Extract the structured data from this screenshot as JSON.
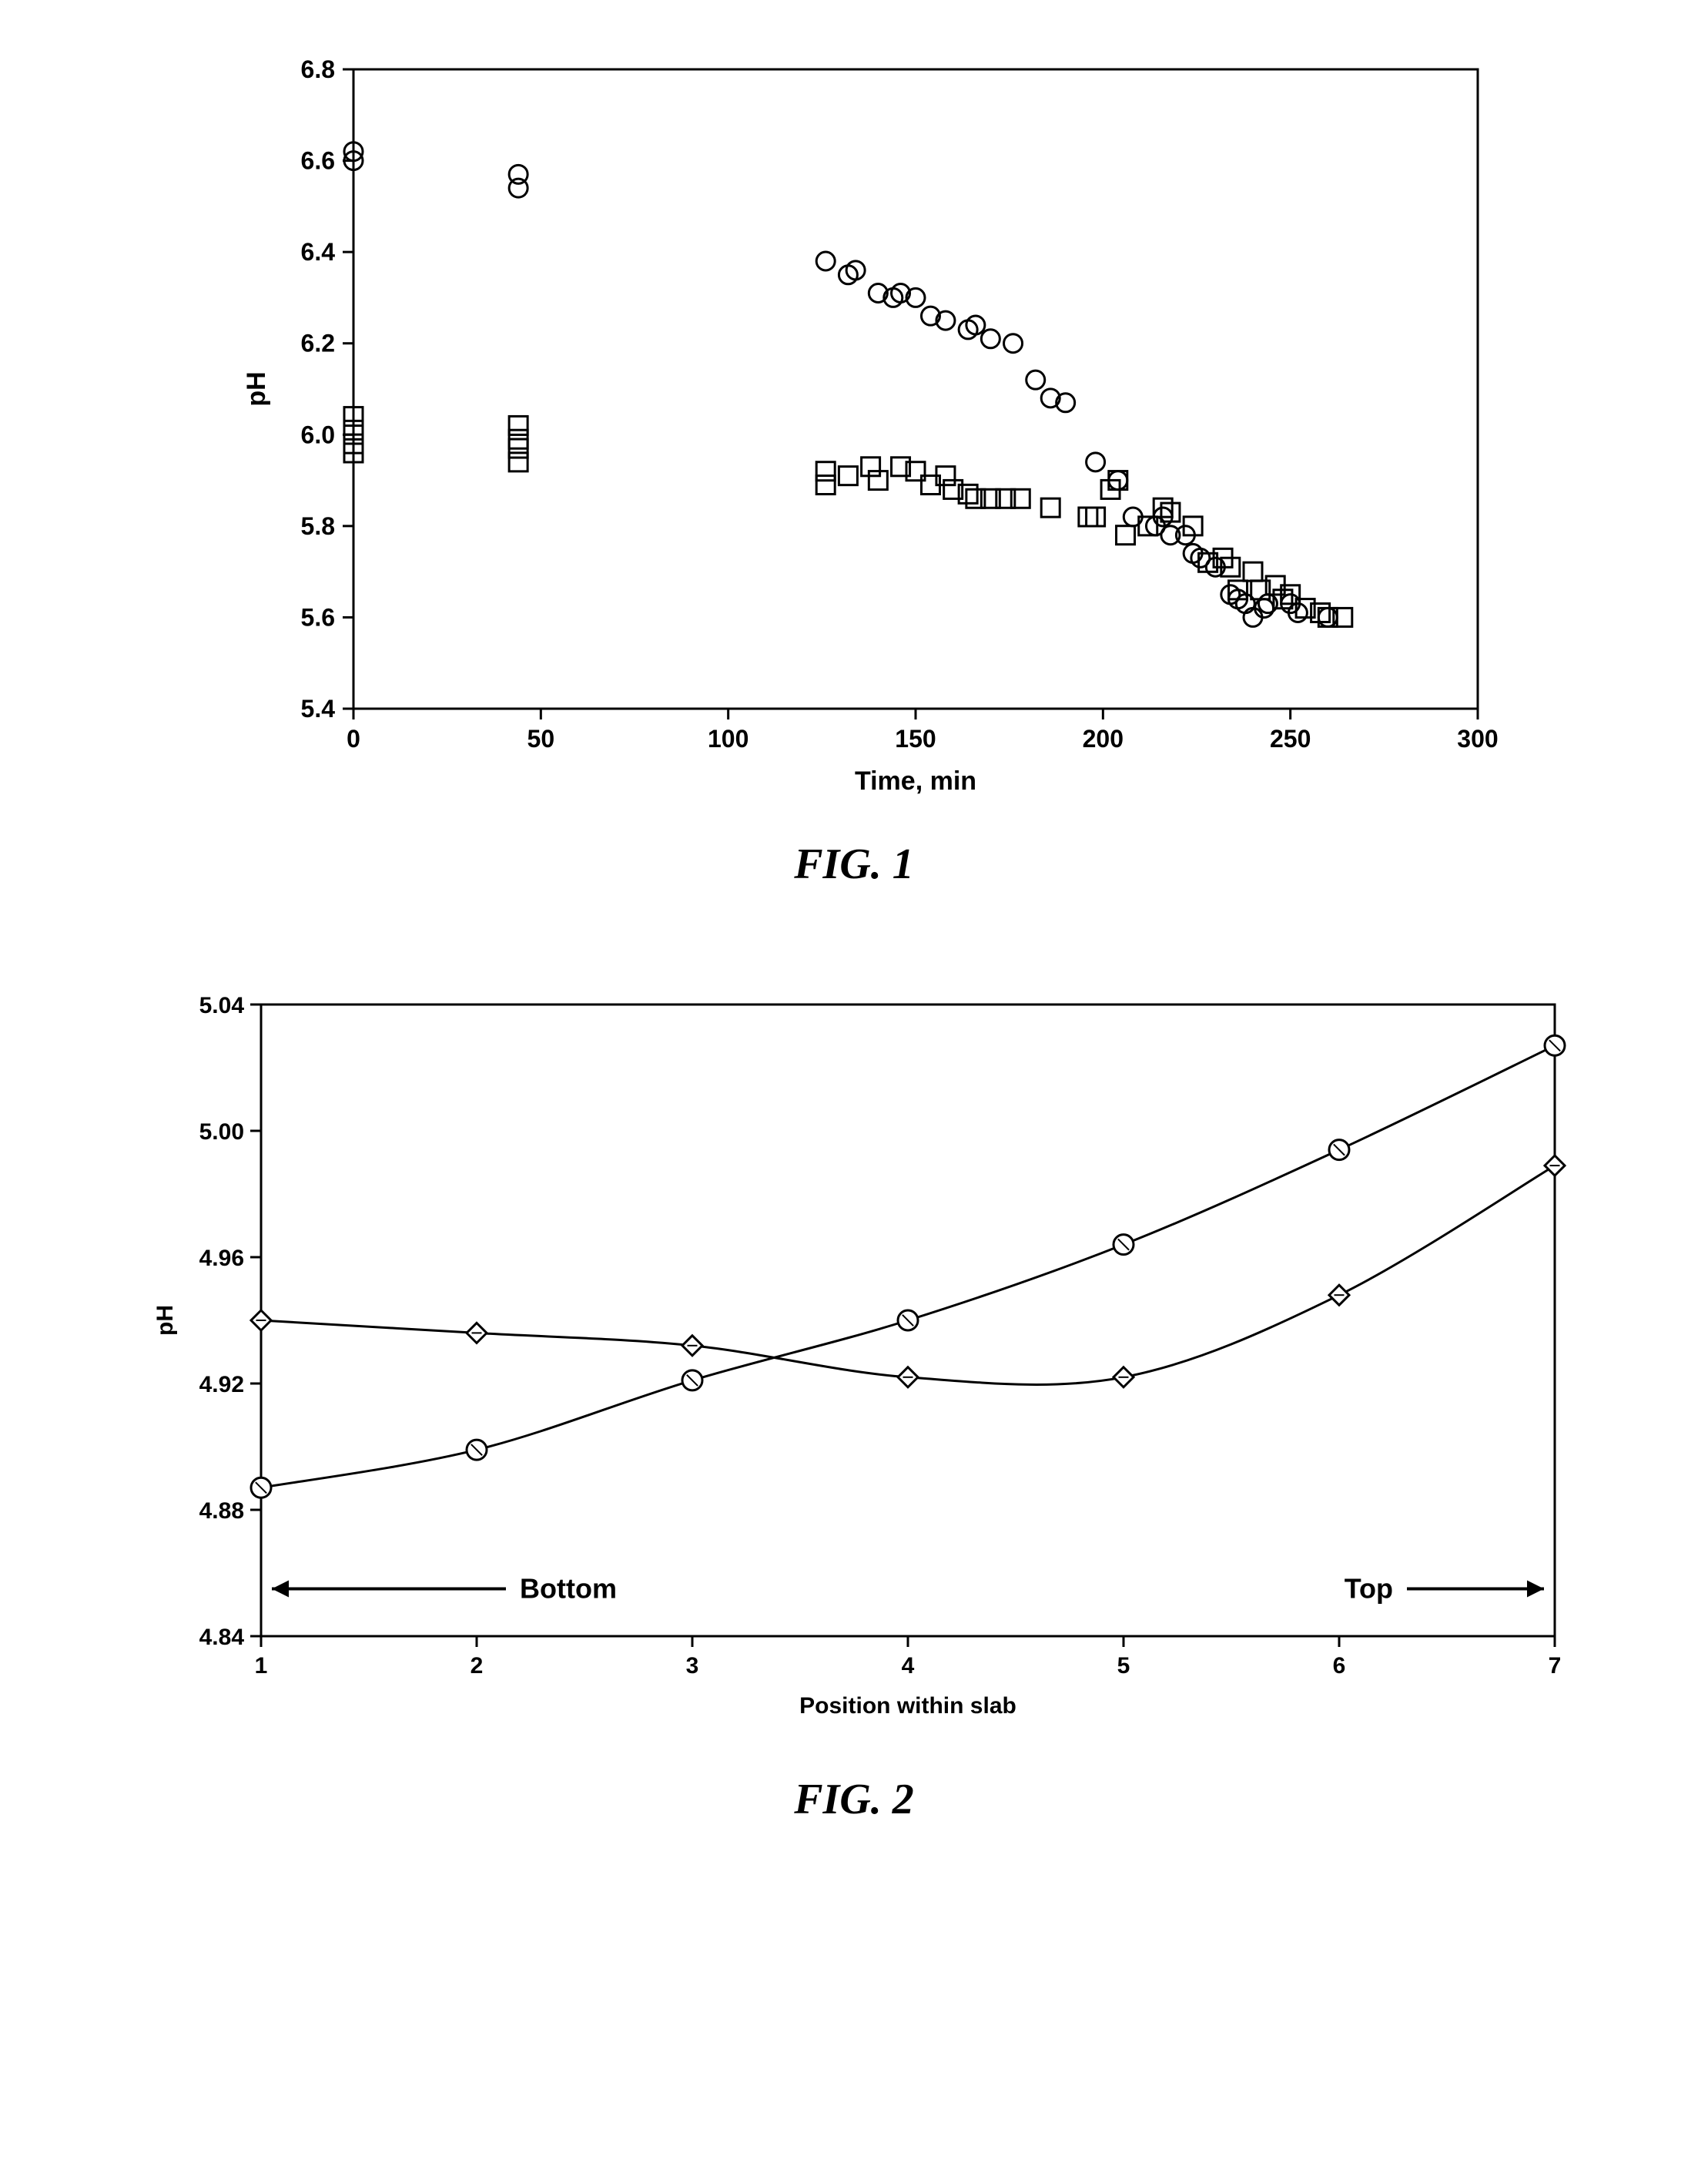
{
  "fig1": {
    "type": "scatter",
    "caption": "FIG. 1",
    "caption_fontsize": 56,
    "xlabel": "Time, min",
    "ylabel": "pH",
    "label_fontsize": 34,
    "tick_fontsize": 32,
    "plot_bg": "#ffffff",
    "axis_color": "#000000",
    "axis_width": 3,
    "marker_stroke": "#000000",
    "marker_stroke_width": 3,
    "marker_fill": "none",
    "marker_size": 12,
    "xlim": [
      0,
      300
    ],
    "ylim": [
      5.4,
      6.8
    ],
    "xtick_step": 50,
    "ytick_step": 0.2,
    "series": [
      {
        "name": "circles",
        "marker": "circle",
        "points": [
          [
            0,
            6.62
          ],
          [
            0,
            6.6
          ],
          [
            44,
            6.57
          ],
          [
            44,
            6.54
          ],
          [
            126,
            6.38
          ],
          [
            132,
            6.35
          ],
          [
            134,
            6.36
          ],
          [
            140,
            6.31
          ],
          [
            144,
            6.3
          ],
          [
            146,
            6.31
          ],
          [
            150,
            6.3
          ],
          [
            154,
            6.26
          ],
          [
            158,
            6.25
          ],
          [
            164,
            6.23
          ],
          [
            166,
            6.24
          ],
          [
            170,
            6.21
          ],
          [
            176,
            6.2
          ],
          [
            182,
            6.12
          ],
          [
            186,
            6.08
          ],
          [
            190,
            6.07
          ],
          [
            198,
            5.94
          ],
          [
            204,
            5.9
          ],
          [
            208,
            5.82
          ],
          [
            214,
            5.8
          ],
          [
            216,
            5.82
          ],
          [
            218,
            5.78
          ],
          [
            222,
            5.78
          ],
          [
            224,
            5.74
          ],
          [
            226,
            5.73
          ],
          [
            230,
            5.71
          ],
          [
            234,
            5.65
          ],
          [
            236,
            5.64
          ],
          [
            238,
            5.63
          ],
          [
            240,
            5.6
          ],
          [
            243,
            5.62
          ],
          [
            244,
            5.63
          ],
          [
            250,
            5.63
          ],
          [
            252,
            5.61
          ],
          [
            260,
            5.6
          ]
        ]
      },
      {
        "name": "squares",
        "marker": "square",
        "points": [
          [
            0,
            6.04
          ],
          [
            0,
            6.01
          ],
          [
            0,
            5.98
          ],
          [
            0,
            5.96
          ],
          [
            44,
            6.02
          ],
          [
            44,
            5.99
          ],
          [
            44,
            5.97
          ],
          [
            44,
            5.94
          ],
          [
            126,
            5.92
          ],
          [
            126,
            5.89
          ],
          [
            132,
            5.91
          ],
          [
            138,
            5.93
          ],
          [
            140,
            5.9
          ],
          [
            146,
            5.93
          ],
          [
            150,
            5.92
          ],
          [
            154,
            5.89
          ],
          [
            158,
            5.91
          ],
          [
            160,
            5.88
          ],
          [
            164,
            5.87
          ],
          [
            166,
            5.86
          ],
          [
            170,
            5.86
          ],
          [
            174,
            5.86
          ],
          [
            178,
            5.86
          ],
          [
            186,
            5.84
          ],
          [
            196,
            5.82
          ],
          [
            198,
            5.82
          ],
          [
            202,
            5.88
          ],
          [
            204,
            5.9
          ],
          [
            206,
            5.78
          ],
          [
            212,
            5.8
          ],
          [
            216,
            5.84
          ],
          [
            218,
            5.83
          ],
          [
            224,
            5.8
          ],
          [
            228,
            5.72
          ],
          [
            232,
            5.73
          ],
          [
            234,
            5.71
          ],
          [
            236,
            5.66
          ],
          [
            240,
            5.7
          ],
          [
            242,
            5.66
          ],
          [
            246,
            5.67
          ],
          [
            248,
            5.64
          ],
          [
            250,
            5.65
          ],
          [
            254,
            5.62
          ],
          [
            258,
            5.61
          ],
          [
            260,
            5.6
          ],
          [
            264,
            5.6
          ]
        ]
      }
    ]
  },
  "fig2": {
    "type": "line-scatter",
    "caption": "FIG. 2",
    "caption_fontsize": 56,
    "xlabel": "Position within slab",
    "ylabel": "pH",
    "label_fontsize": 30,
    "tick_fontsize": 30,
    "plot_bg": "#ffffff",
    "axis_color": "#000000",
    "axis_width": 3,
    "line_color": "#000000",
    "line_width": 3,
    "marker_stroke": "#000000",
    "marker_stroke_width": 3,
    "marker_fill": "#ffffff",
    "marker_size": 13,
    "xlim": [
      1,
      7
    ],
    "ylim": [
      4.84,
      5.04
    ],
    "xticks": [
      1,
      2,
      3,
      4,
      5,
      6,
      7
    ],
    "yticks": [
      4.84,
      4.88,
      4.92,
      4.96,
      5.0,
      5.04
    ],
    "annotations": {
      "bottom_label": "Bottom",
      "top_label": "Top",
      "ann_fontsize": 36,
      "ann_y": 4.855,
      "arrow_len": 0.55
    },
    "series": [
      {
        "name": "circles",
        "marker": "circle",
        "points": [
          [
            1,
            4.887
          ],
          [
            2,
            4.899
          ],
          [
            3,
            4.921
          ],
          [
            4,
            4.94
          ],
          [
            5,
            4.964
          ],
          [
            6,
            4.994
          ],
          [
            7,
            5.027
          ]
        ]
      },
      {
        "name": "diamonds",
        "marker": "diamond",
        "points": [
          [
            1,
            4.94
          ],
          [
            2,
            4.936
          ],
          [
            3,
            4.932
          ],
          [
            4,
            4.922
          ],
          [
            5,
            4.922
          ],
          [
            6,
            4.948
          ],
          [
            7,
            4.989
          ]
        ]
      }
    ]
  }
}
